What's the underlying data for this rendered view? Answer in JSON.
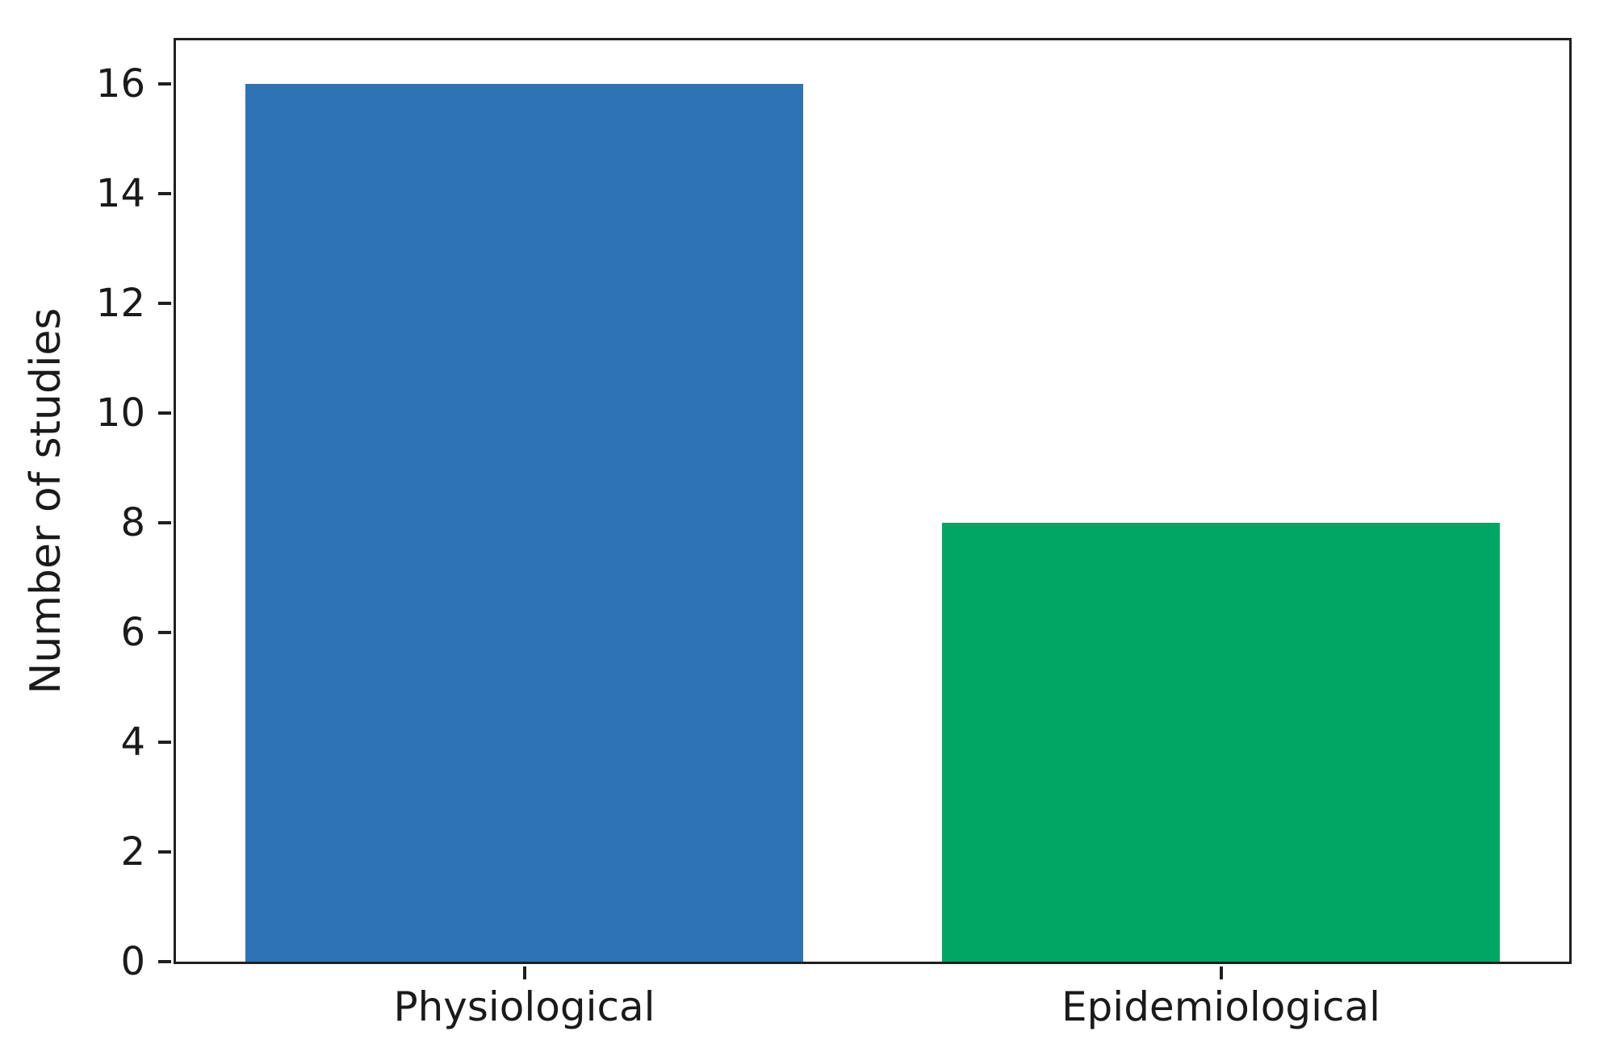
{
  "chart_data": {
    "type": "bar",
    "categories": [
      "Physiological",
      "Epidemiological"
    ],
    "values": [
      16,
      8
    ],
    "bar_colors": [
      "#2e73b5",
      "#00a664"
    ],
    "ylabel": "Number of studies",
    "yticks": [
      0,
      2,
      4,
      6,
      8,
      10,
      12,
      14,
      16
    ],
    "ylim": [
      0,
      16.8
    ],
    "bar_width_fraction": 0.8,
    "grid": false,
    "legend_position": "none",
    "axis_color": "#1f1f1f",
    "text_color": "#1a1a1a",
    "background_color": "#ffffff"
  }
}
